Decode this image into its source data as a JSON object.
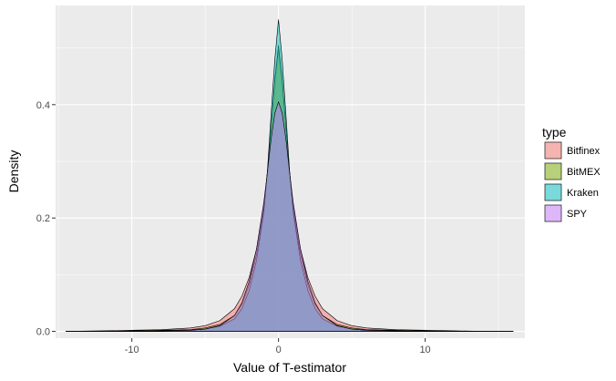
{
  "chart_data": {
    "type": "area",
    "subtype": "density",
    "title": "",
    "xlabel": "Value of T-estimator",
    "ylabel": "Density",
    "xlim": [
      -15.2,
      16.8
    ],
    "ylim": [
      -0.012,
      0.575
    ],
    "x_ticks": [
      -10,
      0,
      10
    ],
    "x_tick_labels": [
      "-10",
      "0",
      "10"
    ],
    "y_ticks": [
      0.0,
      0.2,
      0.4
    ],
    "y_tick_labels": [
      "0.0",
      "0.2",
      "0.4"
    ],
    "grid": true,
    "legend": {
      "title": "type",
      "position": "right"
    },
    "panel_background": "#ebebeb",
    "grid_color": "#ffffff",
    "x": [
      -14.5,
      -12,
      -10,
      -8,
      -6,
      -5,
      -4,
      -3,
      -2.5,
      -2,
      -1.5,
      -1,
      -0.75,
      -0.5,
      -0.25,
      0,
      0.25,
      0.5,
      0.75,
      1,
      1.5,
      2,
      2.5,
      3,
      4,
      5,
      6,
      8,
      10,
      12,
      14,
      16
    ],
    "series": [
      {
        "name": "Bitfinex",
        "color": "#F8766D",
        "values": [
          0.0,
          0.001,
          0.002,
          0.003,
          0.006,
          0.01,
          0.019,
          0.04,
          0.062,
          0.095,
          0.145,
          0.222,
          0.282,
          0.36,
          0.44,
          0.497,
          0.44,
          0.36,
          0.282,
          0.222,
          0.145,
          0.095,
          0.062,
          0.04,
          0.019,
          0.01,
          0.006,
          0.003,
          0.002,
          0.001,
          0.0,
          0.0
        ]
      },
      {
        "name": "BitMEX",
        "color": "#7CAE00",
        "values": [
          0.0,
          0.0,
          0.001,
          0.002,
          0.003,
          0.006,
          0.012,
          0.028,
          0.048,
          0.082,
          0.135,
          0.215,
          0.282,
          0.365,
          0.445,
          0.505,
          0.445,
          0.365,
          0.282,
          0.215,
          0.135,
          0.082,
          0.048,
          0.028,
          0.012,
          0.006,
          0.003,
          0.002,
          0.001,
          0.0,
          0.0,
          0.0
        ]
      },
      {
        "name": "Kraken",
        "color": "#00BFC4",
        "values": [
          0.0,
          0.0,
          0.0,
          0.001,
          0.002,
          0.004,
          0.009,
          0.022,
          0.04,
          0.072,
          0.125,
          0.21,
          0.285,
          0.385,
          0.48,
          0.55,
          0.48,
          0.385,
          0.285,
          0.21,
          0.125,
          0.072,
          0.04,
          0.022,
          0.009,
          0.004,
          0.002,
          0.001,
          0.0,
          0.0,
          0.0,
          0.0
        ]
      },
      {
        "name": "SPY",
        "color": "#C77CFF",
        "values": [
          0.0,
          0.0,
          0.0,
          0.001,
          0.002,
          0.004,
          0.01,
          0.028,
          0.05,
          0.088,
          0.145,
          0.228,
          0.282,
          0.34,
          0.385,
          0.405,
          0.385,
          0.34,
          0.282,
          0.228,
          0.145,
          0.088,
          0.05,
          0.028,
          0.01,
          0.004,
          0.002,
          0.001,
          0.0,
          0.0,
          0.0,
          0.0
        ]
      }
    ]
  }
}
